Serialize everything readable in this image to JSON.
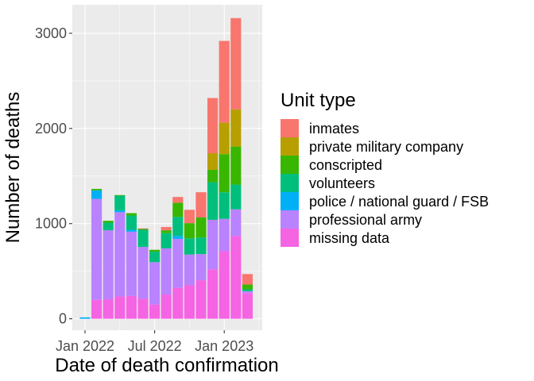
{
  "chart_data": {
    "type": "bar",
    "stacked": true,
    "xlabel": "Date of death confirmation",
    "ylabel": "Number of deaths",
    "x_tick_labels": [
      "Jan 2022",
      "Jul 2022",
      "Jan 2023"
    ],
    "y_ticks": [
      0,
      1000,
      2000,
      3000
    ],
    "ylim": [
      -120,
      3300
    ],
    "grid": true,
    "legend_title": "Unit type",
    "legend_position": "right",
    "months": [
      "2022-01",
      "2022-02",
      "2022-03",
      "2022-04",
      "2022-05",
      "2022-06",
      "2022-07",
      "2022-08",
      "2022-09",
      "2022-10",
      "2022-11",
      "2022-12",
      "2023-01",
      "2023-02",
      "2023-03",
      "2023-04"
    ],
    "series": [
      {
        "name": "missing data",
        "color": "#F564E3",
        "values": [
          0,
          200,
          205,
          235,
          240,
          210,
          150,
          255,
          325,
          355,
          405,
          520,
          710,
          870,
          270,
          0
        ]
      },
      {
        "name": "professional army",
        "color": "#B983FF",
        "values": [
          0,
          1060,
          725,
          885,
          675,
          545,
          445,
          485,
          515,
          320,
          275,
          520,
          340,
          280,
          20,
          0
        ]
      },
      {
        "name": "police / national guard / FSB",
        "color": "#00B0F6",
        "values": [
          15,
          90,
          0,
          20,
          20,
          0,
          0,
          0,
          30,
          0,
          0,
          0,
          0,
          0,
          0,
          0
        ]
      },
      {
        "name": "volunteers",
        "color": "#00BF7D",
        "values": [
          0,
          0,
          80,
          155,
          150,
          180,
          110,
          160,
          200,
          170,
          175,
          395,
          280,
          260,
          20,
          0
        ]
      },
      {
        "name": "conscripted",
        "color": "#39B600",
        "values": [
          0,
          15,
          20,
          5,
          25,
          10,
          20,
          30,
          150,
          160,
          210,
          130,
          400,
          400,
          50,
          0
        ]
      },
      {
        "name": "private military company",
        "color": "#B79F00",
        "values": [
          0,
          0,
          0,
          0,
          0,
          0,
          0,
          0,
          0,
          0,
          0,
          175,
          330,
          390,
          0,
          0
        ]
      },
      {
        "name": "inmates",
        "color": "#F8766D",
        "values": [
          0,
          0,
          0,
          0,
          0,
          5,
          0,
          35,
          60,
          140,
          265,
          580,
          860,
          960,
          110,
          0
        ]
      }
    ],
    "legend_order": [
      "inmates",
      "private military company",
      "conscripted",
      "volunteers",
      "police / national guard / FSB",
      "professional army",
      "missing data"
    ]
  }
}
